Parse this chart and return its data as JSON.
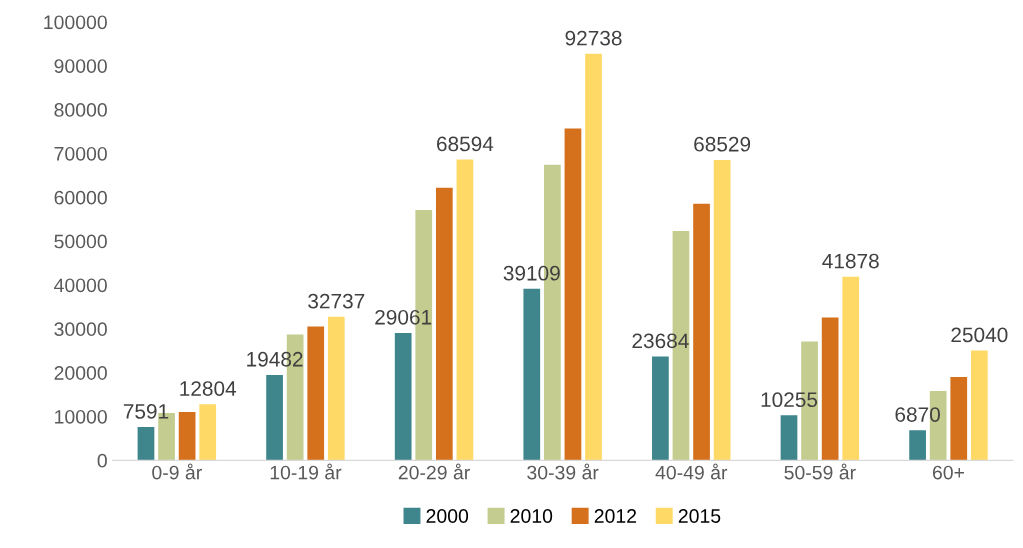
{
  "chart_data": {
    "type": "bar",
    "categories": [
      "0-9 år",
      "10-19 år",
      "20-29 år",
      "30-39 år",
      "40-49 år",
      "50-59 år",
      "60+"
    ],
    "series": [
      {
        "name": "2000",
        "color": "#3e868c",
        "values": [
          7591,
          19482,
          29061,
          39109,
          23684,
          10255,
          6870
        ],
        "value_labels": [
          "7591",
          "19482",
          "29061",
          "39109",
          "23684",
          "10255",
          "6870"
        ]
      },
      {
        "name": "2010",
        "color": "#c4cc8f",
        "values": [
          10800,
          28700,
          57100,
          67400,
          52300,
          27100,
          15800
        ]
      },
      {
        "name": "2012",
        "color": "#d5711d",
        "values": [
          11000,
          30500,
          62200,
          75700,
          58500,
          32600,
          19000
        ]
      },
      {
        "name": "2015",
        "color": "#ffd966",
        "values": [
          12804,
          32737,
          68594,
          92738,
          68529,
          41878,
          25040
        ],
        "value_labels": [
          "12804",
          "32737",
          "68594",
          "92738",
          "68529",
          "41878",
          "25040"
        ]
      }
    ],
    "ylim": [
      0,
      100000
    ],
    "yticks": [
      0,
      10000,
      20000,
      30000,
      40000,
      50000,
      60000,
      70000,
      80000,
      90000,
      100000
    ],
    "grid": false,
    "legend": "bottom"
  }
}
